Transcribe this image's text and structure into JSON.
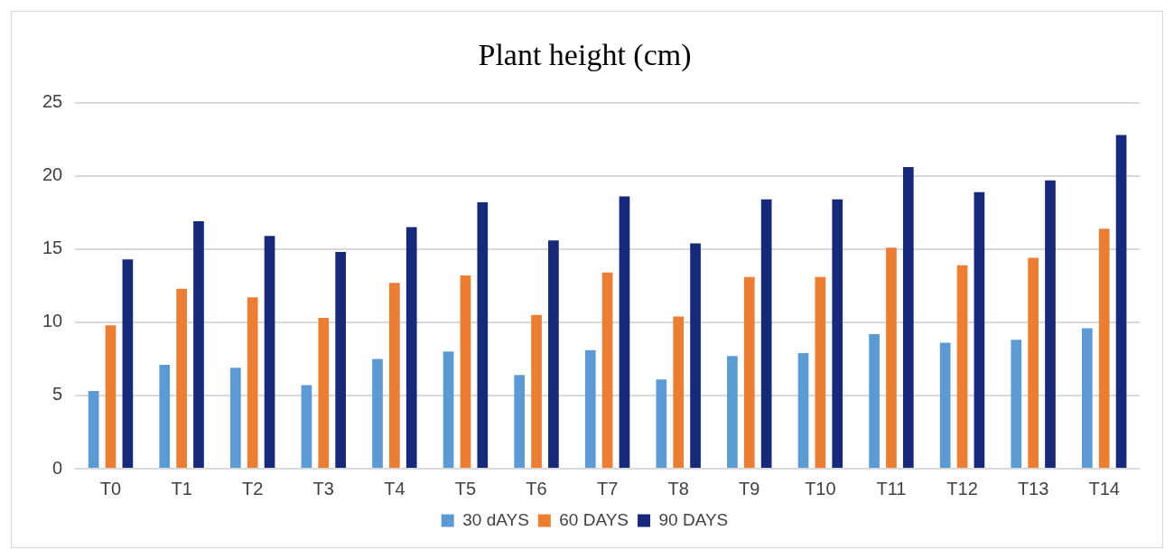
{
  "chart_data": {
    "type": "bar",
    "title": "Plant height (cm)",
    "categories": [
      "T0",
      "T1",
      "T2",
      "T3",
      "T4",
      "T5",
      "T6",
      "T7",
      "T8",
      "T9",
      "T10",
      "T11",
      "T12",
      "T13",
      "T14"
    ],
    "series": [
      {
        "name": "30 dAYS",
        "color": "#5b9bd5",
        "values": [
          5.3,
          7.1,
          6.9,
          5.7,
          7.5,
          8.0,
          6.4,
          8.1,
          6.1,
          7.7,
          7.9,
          9.2,
          8.6,
          8.8,
          9.6
        ]
      },
      {
        "name": "60 DAYS",
        "color": "#ed7d31",
        "values": [
          9.8,
          12.3,
          11.7,
          10.3,
          12.7,
          13.2,
          10.5,
          13.4,
          10.4,
          13.1,
          13.1,
          15.1,
          13.9,
          14.4,
          16.4
        ]
      },
      {
        "name": "90 DAYS",
        "color": "#16297a",
        "values": [
          14.3,
          16.9,
          15.9,
          14.8,
          16.5,
          18.2,
          15.6,
          18.6,
          15.4,
          18.4,
          18.4,
          20.6,
          18.9,
          19.7,
          22.8
        ]
      }
    ],
    "ylim": [
      0,
      25
    ],
    "yticks": [
      0,
      5,
      10,
      15,
      20,
      25
    ],
    "grid": "y",
    "legend": "bottom"
  }
}
